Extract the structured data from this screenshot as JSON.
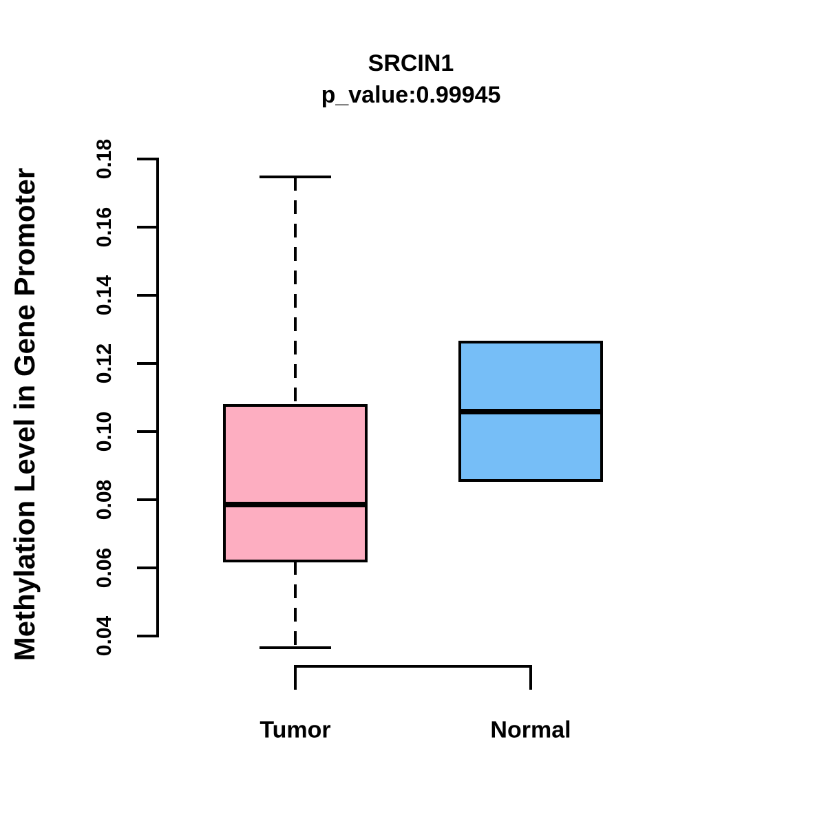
{
  "title": {
    "gene": "SRCIN1",
    "p_value": "p_value:0.99945"
  },
  "chart_data": {
    "type": "boxplot",
    "title": "SRCIN1",
    "subtitle": "p_value:0.99945",
    "xlabel": "",
    "ylabel": "Methylation Level in Gene Promoter",
    "ylim": [
      0.04,
      0.18
    ],
    "yticks": [
      0.04,
      0.06,
      0.08,
      0.1,
      0.12,
      0.14,
      0.16,
      0.18
    ],
    "grid": false,
    "categories": [
      "Tumor",
      "Normal"
    ],
    "series": [
      {
        "name": "Tumor",
        "color": "#FDAEC1",
        "whisker_low": 0.0366,
        "q1": 0.062,
        "median": 0.0786,
        "q3": 0.1077,
        "whisker_high": 0.1747,
        "whisker_style": "dashed"
      },
      {
        "name": "Normal",
        "color": "#76BEF7",
        "whisker_low": 0.0857,
        "q1": 0.0857,
        "median": 0.1059,
        "q3": 0.1263,
        "whisker_high": 0.1263,
        "whisker_style": "dashed"
      }
    ]
  },
  "colors": {
    "tumor_fill": "#FDAEC1",
    "normal_fill": "#76BEF7",
    "line": "#000000",
    "background": "#ffffff"
  }
}
